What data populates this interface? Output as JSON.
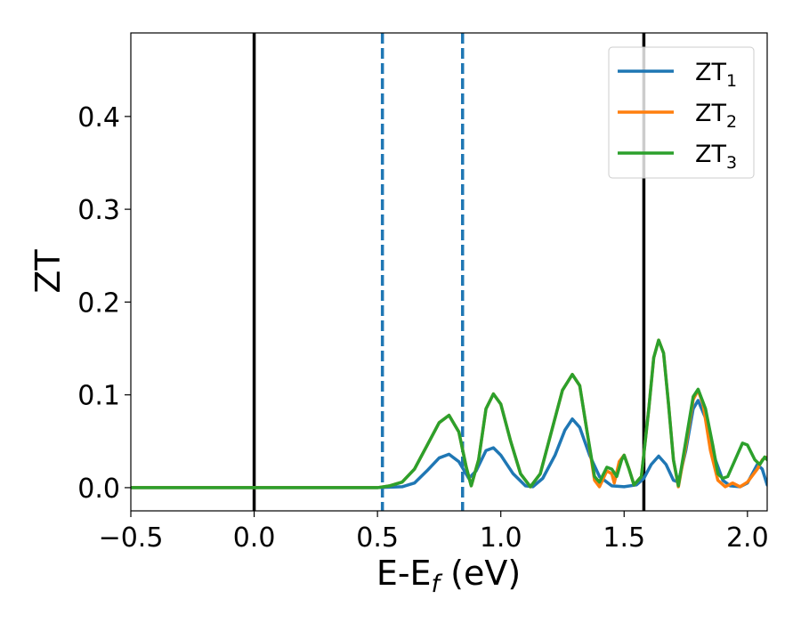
{
  "chart_data": {
    "type": "line",
    "xlabel": "E-E",
    "xlabel_sub": "f",
    "xlabel_unit": " (eV)",
    "ylabel": "ZT",
    "xlim": [
      -0.5,
      2.08
    ],
    "ylim": [
      -0.025,
      0.49
    ],
    "xticks": [
      -0.5,
      0.0,
      0.5,
      1.0,
      1.5,
      2.0
    ],
    "xtick_labels": [
      "−0.5",
      "0.0",
      "0.5",
      "1.0",
      "1.5",
      "2.0"
    ],
    "yticks": [
      0.0,
      0.1,
      0.2,
      0.3,
      0.4
    ],
    "ytick_labels": [
      "0.0",
      "0.1",
      "0.2",
      "0.3",
      "0.4"
    ],
    "grid": false,
    "legend_position": "top-right",
    "vlines": [
      {
        "x": 0.0,
        "style": "solid",
        "color": "#000000"
      },
      {
        "x": 0.52,
        "style": "dashed",
        "color": "#1f77b4"
      },
      {
        "x": 0.845,
        "style": "dashed",
        "color": "#1f77b4"
      },
      {
        "x": 1.58,
        "style": "solid",
        "color": "#000000"
      }
    ],
    "series": [
      {
        "name": "ZT",
        "sub": "1",
        "color": "#1f77b4",
        "points": [
          [
            -0.5,
            0
          ],
          [
            0.5,
            0
          ],
          [
            0.6,
            0.001
          ],
          [
            0.65,
            0.005
          ],
          [
            0.7,
            0.018
          ],
          [
            0.75,
            0.032
          ],
          [
            0.79,
            0.036
          ],
          [
            0.83,
            0.028
          ],
          [
            0.87,
            0.01
          ],
          [
            0.9,
            0.018
          ],
          [
            0.94,
            0.04
          ],
          [
            0.97,
            0.043
          ],
          [
            1.0,
            0.035
          ],
          [
            1.05,
            0.015
          ],
          [
            1.1,
            0.002
          ],
          [
            1.13,
            0.001
          ],
          [
            1.17,
            0.01
          ],
          [
            1.22,
            0.035
          ],
          [
            1.26,
            0.062
          ],
          [
            1.29,
            0.074
          ],
          [
            1.32,
            0.065
          ],
          [
            1.36,
            0.035
          ],
          [
            1.4,
            0.012
          ],
          [
            1.45,
            0.002
          ],
          [
            1.5,
            0.001
          ],
          [
            1.55,
            0.003
          ],
          [
            1.58,
            0.01
          ],
          [
            1.61,
            0.025
          ],
          [
            1.64,
            0.034
          ],
          [
            1.67,
            0.025
          ],
          [
            1.7,
            0.008
          ],
          [
            1.72,
            0.006
          ],
          [
            1.75,
            0.04
          ],
          [
            1.78,
            0.085
          ],
          [
            1.8,
            0.094
          ],
          [
            1.83,
            0.075
          ],
          [
            1.87,
            0.03
          ],
          [
            1.9,
            0.008
          ],
          [
            1.93,
            0.002
          ],
          [
            1.97,
            0.001
          ],
          [
            2.0,
            0.005
          ],
          [
            2.04,
            0.025
          ],
          [
            2.06,
            0.02
          ],
          [
            2.08,
            0.003
          ]
        ]
      },
      {
        "name": "ZT",
        "sub": "2",
        "color": "#ff7f0e",
        "points": [
          [
            -0.5,
            0
          ],
          [
            0.5,
            0
          ],
          [
            0.55,
            0.002
          ],
          [
            0.6,
            0.006
          ],
          [
            0.65,
            0.02
          ],
          [
            0.7,
            0.045
          ],
          [
            0.75,
            0.07
          ],
          [
            0.79,
            0.078
          ],
          [
            0.83,
            0.06
          ],
          [
            0.86,
            0.022
          ],
          [
            0.88,
            0.002
          ],
          [
            0.91,
            0.03
          ],
          [
            0.94,
            0.085
          ],
          [
            0.97,
            0.101
          ],
          [
            1.0,
            0.09
          ],
          [
            1.04,
            0.05
          ],
          [
            1.08,
            0.015
          ],
          [
            1.12,
            0.001
          ],
          [
            1.16,
            0.015
          ],
          [
            1.2,
            0.055
          ],
          [
            1.25,
            0.105
          ],
          [
            1.29,
            0.122
          ],
          [
            1.32,
            0.11
          ],
          [
            1.35,
            0.06
          ],
          [
            1.38,
            0.008
          ],
          [
            1.4,
            0.001
          ],
          [
            1.43,
            0.018
          ],
          [
            1.45,
            0.015
          ],
          [
            1.46,
            0.005
          ],
          [
            1.48,
            0.028
          ],
          [
            1.5,
            0.035
          ],
          [
            1.52,
            0.02
          ],
          [
            1.54,
            0.003
          ],
          [
            1.57,
            0.012
          ],
          [
            1.6,
            0.085
          ],
          [
            1.62,
            0.14
          ],
          [
            1.64,
            0.159
          ],
          [
            1.66,
            0.145
          ],
          [
            1.68,
            0.09
          ],
          [
            1.7,
            0.03
          ],
          [
            1.72,
            0.001
          ],
          [
            1.75,
            0.045
          ],
          [
            1.78,
            0.095
          ],
          [
            1.8,
            0.105
          ],
          [
            1.82,
            0.09
          ],
          [
            1.85,
            0.04
          ],
          [
            1.88,
            0.008
          ],
          [
            1.91,
            0.001
          ],
          [
            1.94,
            0.005
          ],
          [
            1.97,
            0.001
          ],
          [
            2.0,
            0.006
          ],
          [
            2.04,
            0.02
          ],
          [
            2.06,
            0.03
          ],
          [
            2.08,
            0.033
          ]
        ]
      },
      {
        "name": "ZT",
        "sub": "3",
        "color": "#2ca02c",
        "points": [
          [
            -0.5,
            0
          ],
          [
            0.5,
            0
          ],
          [
            0.55,
            0.002
          ],
          [
            0.6,
            0.006
          ],
          [
            0.65,
            0.02
          ],
          [
            0.7,
            0.045
          ],
          [
            0.75,
            0.07
          ],
          [
            0.79,
            0.078
          ],
          [
            0.83,
            0.06
          ],
          [
            0.86,
            0.022
          ],
          [
            0.88,
            0.002
          ],
          [
            0.91,
            0.03
          ],
          [
            0.94,
            0.085
          ],
          [
            0.97,
            0.101
          ],
          [
            1.0,
            0.09
          ],
          [
            1.04,
            0.05
          ],
          [
            1.08,
            0.015
          ],
          [
            1.12,
            0.001
          ],
          [
            1.16,
            0.015
          ],
          [
            1.2,
            0.055
          ],
          [
            1.25,
            0.105
          ],
          [
            1.29,
            0.122
          ],
          [
            1.32,
            0.11
          ],
          [
            1.35,
            0.06
          ],
          [
            1.38,
            0.012
          ],
          [
            1.4,
            0.006
          ],
          [
            1.43,
            0.022
          ],
          [
            1.45,
            0.02
          ],
          [
            1.47,
            0.012
          ],
          [
            1.49,
            0.03
          ],
          [
            1.5,
            0.035
          ],
          [
            1.52,
            0.02
          ],
          [
            1.54,
            0.003
          ],
          [
            1.57,
            0.012
          ],
          [
            1.6,
            0.085
          ],
          [
            1.62,
            0.14
          ],
          [
            1.64,
            0.159
          ],
          [
            1.66,
            0.145
          ],
          [
            1.68,
            0.09
          ],
          [
            1.7,
            0.03
          ],
          [
            1.72,
            0.002
          ],
          [
            1.75,
            0.05
          ],
          [
            1.78,
            0.098
          ],
          [
            1.8,
            0.106
          ],
          [
            1.83,
            0.085
          ],
          [
            1.86,
            0.045
          ],
          [
            1.88,
            0.015
          ],
          [
            1.9,
            0.01
          ],
          [
            1.92,
            0.012
          ],
          [
            1.95,
            0.03
          ],
          [
            1.98,
            0.048
          ],
          [
            2.0,
            0.046
          ],
          [
            2.03,
            0.03
          ],
          [
            2.05,
            0.025
          ],
          [
            2.07,
            0.033
          ],
          [
            2.08,
            0.03
          ]
        ]
      }
    ]
  }
}
